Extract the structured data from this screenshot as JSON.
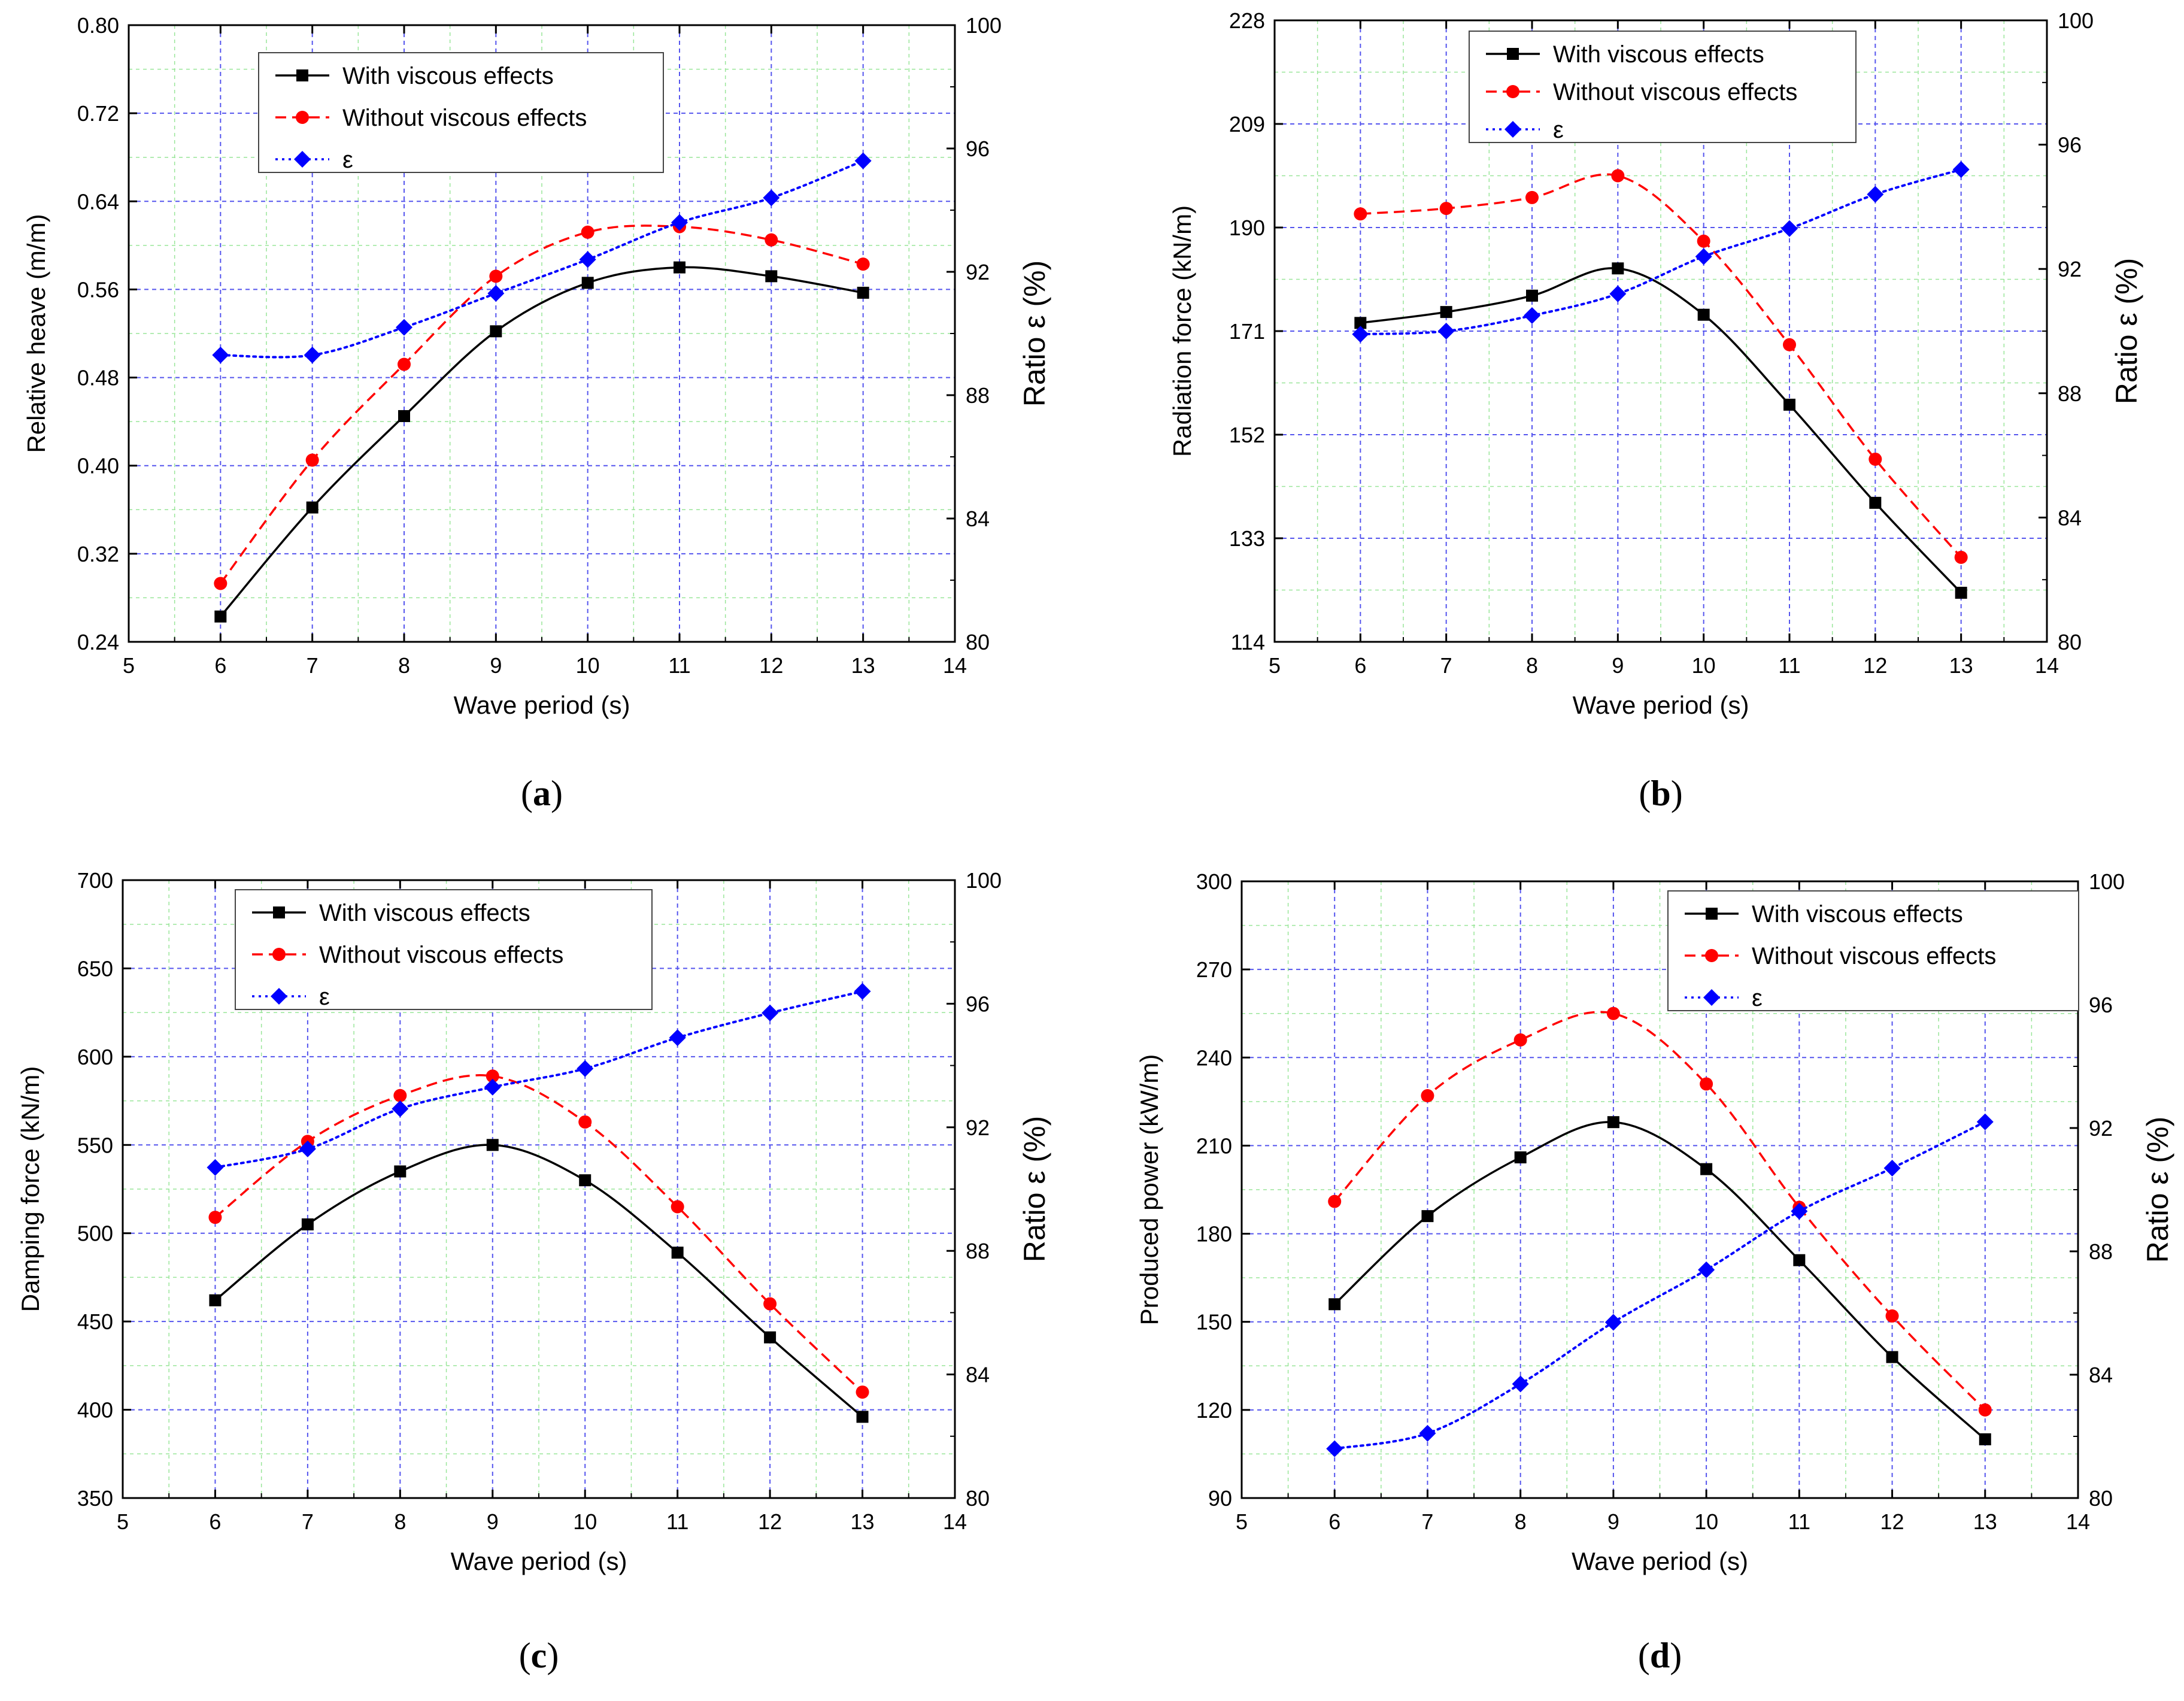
{
  "chart_data": [
    {
      "type": "line",
      "panel_label": "a",
      "xlabel": "Wave period (s)",
      "ylabel": "Relative heave (m/m)",
      "y2label": "Ratio ε (%)",
      "xlim": [
        5,
        14
      ],
      "xticks": [
        "5",
        "6",
        "7",
        "8",
        "9",
        "10",
        "11",
        "12",
        "13",
        "14"
      ],
      "ylim": [
        0.24,
        0.8
      ],
      "yticks": [
        "0.24",
        "0.32",
        "0.40",
        "0.48",
        "0.56",
        "0.64",
        "0.72",
        "0.80"
      ],
      "y2lim": [
        80,
        100
      ],
      "y2ticks": [
        "80",
        "84",
        "88",
        "92",
        "96",
        "100"
      ],
      "grid": true,
      "legend_position": "top-left",
      "x": [
        6,
        7,
        8,
        9,
        10,
        11,
        12,
        13
      ],
      "series": [
        {
          "name": "With viscous effects",
          "axis": "left",
          "color": "#000000",
          "marker": "square",
          "linestyle": "solid",
          "values": [
            0.263,
            0.362,
            0.445,
            0.522,
            0.566,
            0.58,
            0.572,
            0.557
          ]
        },
        {
          "name": "Without viscous effects",
          "axis": "left",
          "color": "#ff0000",
          "marker": "circle",
          "linestyle": "dashed",
          "values": [
            0.293,
            0.405,
            0.492,
            0.572,
            0.612,
            0.617,
            0.605,
            0.583
          ]
        },
        {
          "name": "ε",
          "axis": "right",
          "color": "#0000ff",
          "marker": "diamond",
          "linestyle": "dotted",
          "values": [
            89.3,
            89.3,
            90.2,
            91.3,
            92.4,
            93.6,
            94.4,
            95.6
          ]
        }
      ]
    },
    {
      "type": "line",
      "panel_label": "b",
      "xlabel": "Wave period (s)",
      "ylabel": "Radiation force (kN/m)",
      "y2label": "Ratio ε (%)",
      "xlim": [
        5,
        14
      ],
      "xticks": [
        "5",
        "6",
        "7",
        "8",
        "9",
        "10",
        "11",
        "12",
        "13",
        "14"
      ],
      "ylim": [
        114,
        228
      ],
      "yticks": [
        "114",
        "133",
        "152",
        "171",
        "190",
        "209",
        "228"
      ],
      "y2lim": [
        80,
        100
      ],
      "y2ticks": [
        "80",
        "84",
        "88",
        "92",
        "96",
        "100"
      ],
      "grid": true,
      "legend_position": "top-center",
      "x": [
        6,
        7,
        8,
        9,
        10,
        11,
        12,
        13
      ],
      "series": [
        {
          "name": "With viscous effects",
          "axis": "left",
          "color": "#000000",
          "marker": "square",
          "linestyle": "solid",
          "values": [
            172.5,
            174.5,
            177.5,
            182.5,
            174.0,
            157.5,
            139.5,
            123.0
          ]
        },
        {
          "name": "Without viscous effects",
          "axis": "left",
          "color": "#ff0000",
          "marker": "circle",
          "linestyle": "dashed",
          "values": [
            192.5,
            193.5,
            195.5,
            199.5,
            187.5,
            168.5,
            147.5,
            129.5
          ]
        },
        {
          "name": "ε",
          "axis": "right",
          "color": "#0000ff",
          "marker": "diamond",
          "linestyle": "dotted",
          "values": [
            89.9,
            90.0,
            90.5,
            91.2,
            92.4,
            93.3,
            94.4,
            95.2
          ]
        }
      ]
    },
    {
      "type": "line",
      "panel_label": "c",
      "xlabel": "Wave period (s)",
      "ylabel": "Damping force (kN/m)",
      "y2label": "Ratio ε (%)",
      "xlim": [
        5,
        14
      ],
      "xticks": [
        "5",
        "6",
        "7",
        "8",
        "9",
        "10",
        "11",
        "12",
        "13",
        "14"
      ],
      "ylim": [
        350,
        700
      ],
      "yticks": [
        "350",
        "400",
        "450",
        "500",
        "550",
        "600",
        "650",
        "700"
      ],
      "y2lim": [
        80,
        100
      ],
      "y2ticks": [
        "80",
        "84",
        "88",
        "92",
        "96",
        "100"
      ],
      "grid": true,
      "legend_position": "top-center",
      "x": [
        6,
        7,
        8,
        9,
        10,
        11,
        12,
        13
      ],
      "series": [
        {
          "name": "With viscous effects",
          "axis": "left",
          "color": "#000000",
          "marker": "square",
          "linestyle": "solid",
          "values": [
            462,
            505,
            535,
            550,
            530,
            489,
            441,
            396
          ]
        },
        {
          "name": "Without viscous effects",
          "axis": "left",
          "color": "#ff0000",
          "marker": "circle",
          "linestyle": "dashed",
          "values": [
            509,
            552,
            578,
            589,
            563,
            515,
            460,
            410
          ]
        },
        {
          "name": "ε",
          "axis": "right",
          "color": "#0000ff",
          "marker": "diamond",
          "linestyle": "dotted",
          "values": [
            90.7,
            91.3,
            92.6,
            93.3,
            93.9,
            94.9,
            95.7,
            96.4
          ]
        }
      ]
    },
    {
      "type": "line",
      "panel_label": "d",
      "xlabel": "Wave period (s)",
      "ylabel": "Produced power (kW/m)",
      "y2label": "Ratio ε (%)",
      "xlim": [
        5,
        14
      ],
      "xticks": [
        "5",
        "6",
        "7",
        "8",
        "9",
        "10",
        "11",
        "12",
        "13",
        "14"
      ],
      "ylim": [
        90,
        300
      ],
      "yticks": [
        "90",
        "120",
        "150",
        "180",
        "210",
        "240",
        "270",
        "300"
      ],
      "y2lim": [
        80,
        100
      ],
      "y2ticks": [
        "80",
        "84",
        "88",
        "92",
        "96",
        "100"
      ],
      "grid": true,
      "legend_position": "top-right",
      "x": [
        6,
        7,
        8,
        9,
        10,
        11,
        12,
        13
      ],
      "series": [
        {
          "name": "With viscous effects",
          "axis": "left",
          "color": "#000000",
          "marker": "square",
          "linestyle": "solid",
          "values": [
            156,
            186,
            206,
            218,
            202,
            171,
            138,
            110
          ]
        },
        {
          "name": "Without viscous effects",
          "axis": "left",
          "color": "#ff0000",
          "marker": "circle",
          "linestyle": "dashed",
          "values": [
            191,
            227,
            246,
            255,
            231,
            189,
            152,
            120
          ]
        },
        {
          "name": "ε",
          "axis": "right",
          "color": "#0000ff",
          "marker": "diamond",
          "linestyle": "dotted",
          "values": [
            81.6,
            82.1,
            83.7,
            85.7,
            87.4,
            89.3,
            90.7,
            92.2
          ]
        }
      ]
    }
  ]
}
